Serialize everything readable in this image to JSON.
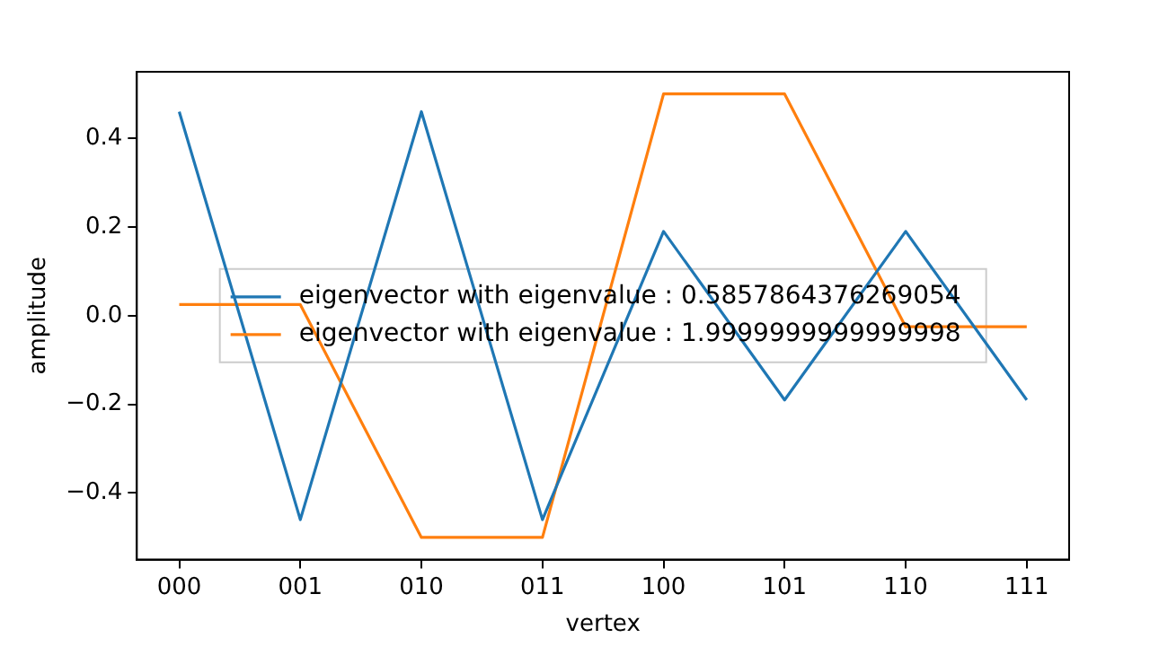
{
  "chart_data": {
    "type": "line",
    "xlabel": "vertex",
    "ylabel": "amplitude",
    "categories": [
      "000",
      "001",
      "010",
      "011",
      "100",
      "101",
      "110",
      "111"
    ],
    "series": [
      {
        "name": "eigenvector with eigenvalue : 0.5857864376269054",
        "color": "#1f77b4",
        "values": [
          0.46,
          -0.46,
          0.46,
          -0.46,
          0.19,
          -0.19,
          0.19,
          -0.19
        ]
      },
      {
        "name": "eigenvector with eigenvalue : 1.9999999999999998",
        "color": "#ff7f0e",
        "values": [
          0.025,
          0.025,
          -0.5,
          -0.5,
          0.5,
          0.5,
          -0.025,
          -0.025
        ]
      }
    ],
    "ylim": [
      -0.55,
      0.55
    ],
    "yticks": [
      {
        "value": -0.4,
        "label": "−0.4"
      },
      {
        "value": -0.2,
        "label": "−0.2"
      },
      {
        "value": 0,
        "label": "0.0"
      },
      {
        "value": 0.2,
        "label": "0.2"
      },
      {
        "value": 0.4,
        "label": "0.4"
      }
    ],
    "grid": false,
    "legend": "center",
    "marker": "none",
    "line_style": "solid"
  }
}
